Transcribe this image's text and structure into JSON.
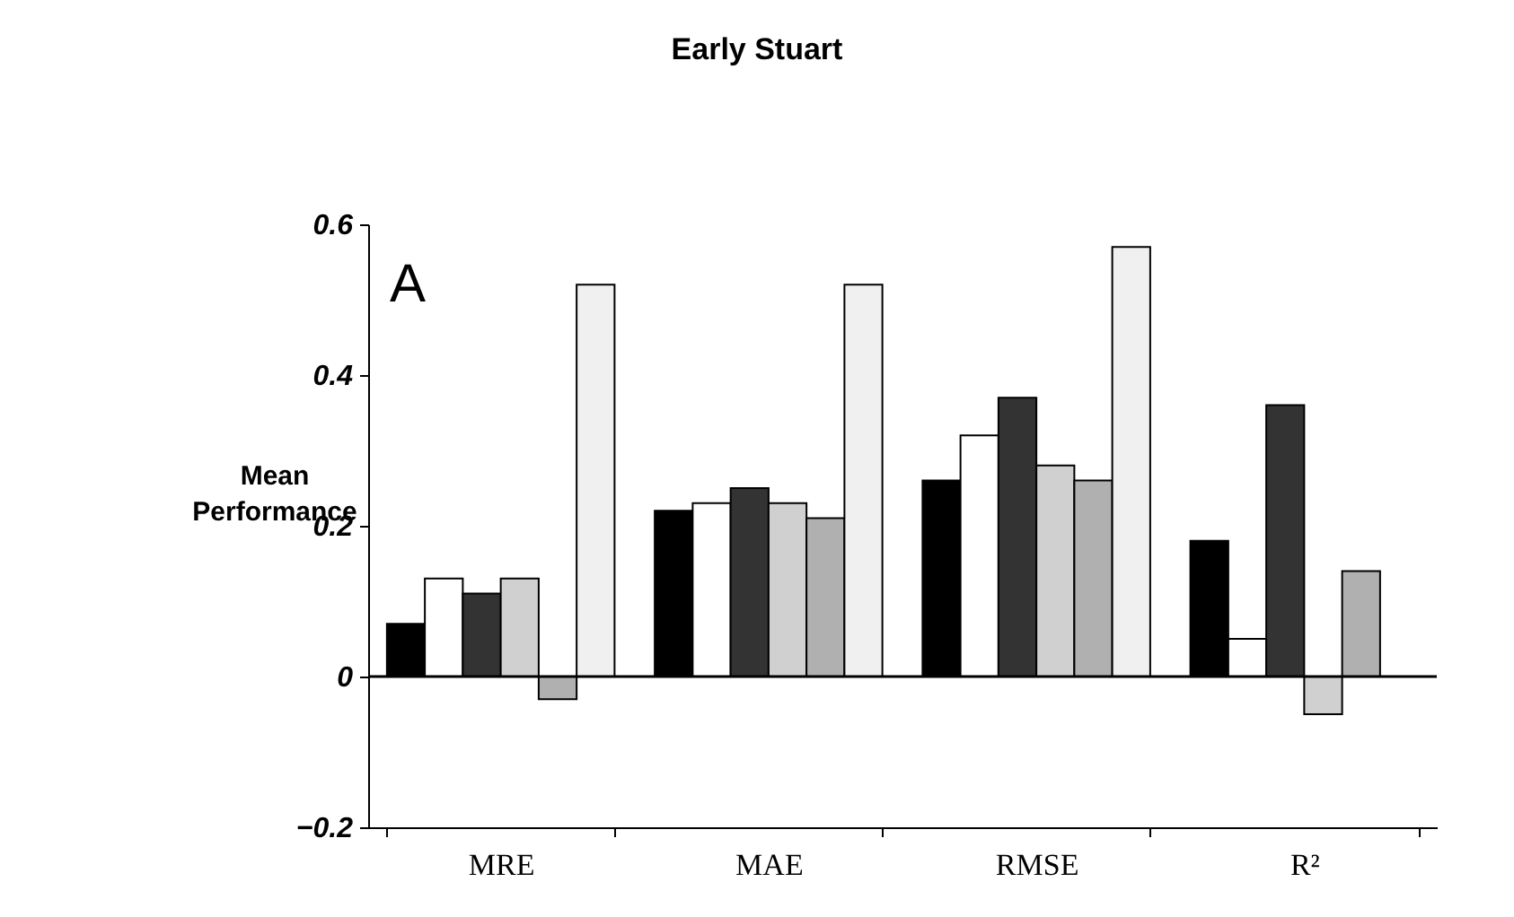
{
  "chart_data": {
    "type": "bar",
    "title": "Early Stuart",
    "ylabel": "Mean Performance",
    "categories": [
      "MRE",
      "MAE",
      "RMSE",
      "R²"
    ],
    "series": [
      {
        "color": "#000000",
        "values": [
          0.07,
          0.22,
          0.26,
          0.18
        ]
      },
      {
        "color": "#ffffff",
        "values": [
          0.13,
          0.23,
          0.32,
          0.05
        ]
      },
      {
        "color": "#333333",
        "values": [
          0.11,
          0.25,
          0.37,
          0.36
        ]
      },
      {
        "color": "#d0d0d0",
        "values": [
          0.13,
          0.23,
          0.28,
          -0.05
        ]
      },
      {
        "color": "#b0b0b0",
        "values": [
          -0.03,
          0.21,
          0.26,
          0.14
        ]
      },
      {
        "color": "#f0f0f0",
        "values": [
          0.52,
          0.52,
          0.57,
          null
        ]
      }
    ],
    "ylim": [
      -0.2,
      0.6
    ],
    "yticks": [
      -0.2,
      0,
      0.2,
      0.4,
      0.6
    ],
    "ref_lines": [
      {
        "axis": "y",
        "value": 0
      }
    ],
    "annotations": [
      "A"
    ],
    "grid": false,
    "legend": false
  }
}
